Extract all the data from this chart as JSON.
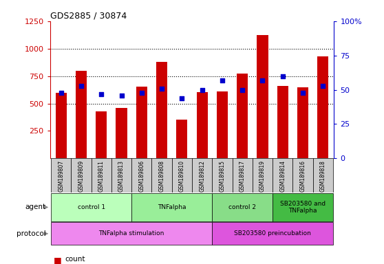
{
  "title": "GDS2885 / 30874",
  "samples": [
    "GSM189807",
    "GSM189809",
    "GSM189811",
    "GSM189813",
    "GSM189806",
    "GSM189808",
    "GSM189810",
    "GSM189812",
    "GSM189815",
    "GSM189817",
    "GSM189819",
    "GSM189814",
    "GSM189816",
    "GSM189818"
  ],
  "counts": [
    600,
    800,
    430,
    460,
    655,
    880,
    350,
    605,
    610,
    770,
    1120,
    660,
    645,
    930
  ],
  "percentile_ranks": [
    48,
    53,
    47,
    46,
    48,
    51,
    44,
    50,
    57,
    50,
    57,
    60,
    48,
    53
  ],
  "ylim_left": [
    0,
    1250
  ],
  "ylim_right": [
    0,
    100
  ],
  "yticks_left": [
    250,
    500,
    750,
    1000,
    1250
  ],
  "yticks_right": [
    0,
    25,
    50,
    75,
    100
  ],
  "bar_color": "#cc0000",
  "dot_color": "#0000cc",
  "left_axis_color": "#cc0000",
  "right_axis_color": "#0000cc",
  "sample_bg_color": "#cccccc",
  "agent_colors": [
    "#bbffbb",
    "#99ee99",
    "#88dd88",
    "#44bb44"
  ],
  "proto_colors": [
    "#ee88ee",
    "#dd55dd"
  ],
  "agent_groups": [
    {
      "label": "control 1",
      "start": 0,
      "end": 4
    },
    {
      "label": "TNFalpha",
      "start": 4,
      "end": 8
    },
    {
      "label": "control 2",
      "start": 8,
      "end": 11
    },
    {
      "label": "SB203580 and\nTNFalpha",
      "start": 11,
      "end": 14
    }
  ],
  "protocol_groups": [
    {
      "label": "TNFalpha stimulation",
      "start": 0,
      "end": 8
    },
    {
      "label": "SB203580 preincubation",
      "start": 8,
      "end": 14
    }
  ],
  "gridline_values": [
    500,
    750,
    1000
  ],
  "n_samples": 14
}
